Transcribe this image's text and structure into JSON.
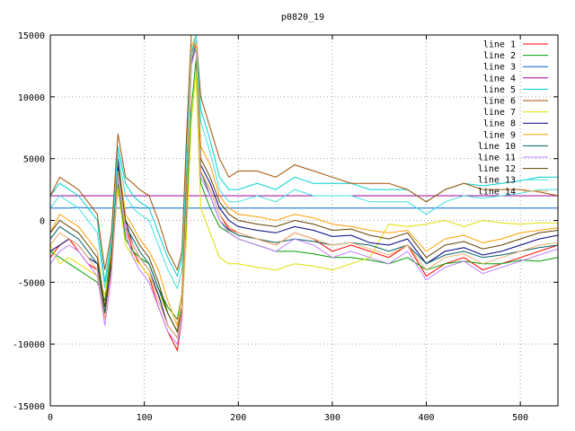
{
  "chart_data": {
    "type": "line",
    "title": "p0820_19",
    "xlabel": "",
    "ylabel": "",
    "xlim": [
      0,
      540
    ],
    "ylim": [
      -15000,
      15000
    ],
    "xticks": [
      0,
      100,
      200,
      300,
      400,
      500
    ],
    "yticks": [
      -15000,
      -10000,
      -5000,
      0,
      5000,
      10000,
      15000
    ],
    "grid": true,
    "legend_position": "top-right",
    "x": [
      0,
      10,
      20,
      30,
      40,
      50,
      58,
      65,
      72,
      80,
      88,
      95,
      105,
      115,
      125,
      135,
      140,
      145,
      150,
      155,
      160,
      170,
      180,
      190,
      200,
      220,
      240,
      260,
      280,
      300,
      320,
      340,
      360,
      380,
      400,
      420,
      440,
      460,
      480,
      500,
      520,
      540
    ],
    "series": [
      {
        "name": "line 1",
        "color": "#ff0000",
        "values": [
          -3000,
          -2000,
          -1500,
          -2500,
          -3500,
          -4000,
          -8000,
          -4000,
          4500,
          -500,
          -2500,
          -3500,
          -4500,
          -7000,
          -9000,
          -10500,
          -8000,
          2000,
          13000,
          14000,
          4000,
          2500,
          500,
          -700,
          -1000,
          -1500,
          -2000,
          -1000,
          -1500,
          -2500,
          -2000,
          -2500,
          -3000,
          -2000,
          -4500,
          -3500,
          -3000,
          -4000,
          -3500,
          -3000,
          -2500,
          -2000
        ]
      },
      {
        "name": "line 2",
        "color": "#00a000",
        "values": [
          -2500,
          -3000,
          -3500,
          -4000,
          -4500,
          -5000,
          -6500,
          -2000,
          3000,
          -1500,
          -2500,
          -3000,
          -3500,
          -5500,
          -7000,
          -8000,
          -6000,
          0,
          9000,
          13000,
          3000,
          1000,
          -500,
          -1000,
          -1500,
          -2000,
          -2500,
          -2500,
          -2700,
          -3000,
          -3000,
          -3200,
          -3500,
          -3000,
          -4000,
          -3500,
          -3300,
          -3500,
          -3500,
          -3200,
          -3300,
          -3000
        ]
      },
      {
        "name": "line 3",
        "color": "#0066cc",
        "values": [
          1000,
          1000,
          1000,
          1050,
          1000,
          1000,
          1000,
          1000,
          1000,
          1000,
          1050,
          1000,
          1000,
          1000,
          1000,
          1000,
          1000,
          1000,
          1000,
          1000,
          1000,
          1000,
          1000,
          1000,
          1000,
          1000,
          1000,
          1000,
          1000,
          1000,
          1000,
          1000,
          1000,
          1000,
          1000,
          1000,
          1000,
          1000,
          1000,
          1000,
          1000,
          1000
        ]
      },
      {
        "name": "line 4",
        "color": "#a000a0",
        "values": [
          2000,
          2000,
          2000,
          2000,
          2000,
          2000,
          2000,
          2000,
          2000,
          2000,
          2000,
          2000,
          2000,
          2000,
          2000,
          2000,
          2000,
          2000,
          2000,
          2000,
          2000,
          2000,
          2000,
          2000,
          2000,
          2000,
          2000,
          2000,
          2000,
          2000,
          2000,
          2000,
          2000,
          2000,
          2000,
          2000,
          2000,
          2000,
          2000,
          2000,
          2000,
          2000
        ]
      },
      {
        "name": "line 5",
        "color": "#00d0d0",
        "values": [
          2000,
          3000,
          2500,
          2000,
          1000,
          0,
          -5000,
          -1500,
          6000,
          3000,
          2000,
          1500,
          1000,
          -1000,
          -3000,
          -4500,
          -3000,
          6000,
          14000,
          15000,
          9000,
          6500,
          3500,
          2500,
          2500,
          3000,
          2500,
          3500,
          3000,
          3000,
          3000,
          2500,
          2500,
          2500,
          1500,
          2500,
          3000,
          2800,
          3000,
          3200,
          3500,
          3500
        ]
      },
      {
        "name": "line 6",
        "color": "#a05000",
        "values": [
          2000,
          3500,
          3000,
          2500,
          1500,
          500,
          -4000,
          -1000,
          7000,
          3500,
          3000,
          2500,
          2000,
          0,
          -2500,
          -4000,
          -2500,
          7000,
          15000,
          15000,
          10000,
          7500,
          5000,
          3500,
          4000,
          4000,
          3500,
          4500,
          4000,
          3500,
          3000,
          3000,
          3000,
          2500,
          1500,
          2500,
          3000,
          2500,
          2500,
          2500,
          2300,
          2000
        ]
      },
      {
        "name": "line 7",
        "color": "#e0e000",
        "values": [
          -2000,
          -3500,
          -3000,
          -3500,
          -4000,
          -4500,
          -6000,
          -3500,
          2500,
          -2000,
          -3000,
          -3500,
          -4500,
          -6000,
          -7500,
          -9000,
          -7500,
          -1000,
          8000,
          12000,
          1000,
          -1000,
          -3000,
          -3500,
          -3500,
          -3800,
          -4000,
          -3500,
          -3700,
          -4000,
          -3500,
          -3000,
          -300,
          -500,
          -300,
          0,
          -500,
          0,
          -200,
          -300,
          -200,
          -200
        ]
      },
      {
        "name": "line 8",
        "color": "#000080",
        "values": [
          -2500,
          -2000,
          -1500,
          -2000,
          -3000,
          -3500,
          -7500,
          -3500,
          4500,
          0,
          -2000,
          -3000,
          -4000,
          -6000,
          -8500,
          -9500,
          -7500,
          2500,
          13000,
          14500,
          4500,
          3000,
          1000,
          0,
          -500,
          -800,
          -1000,
          -500,
          -800,
          -1300,
          -1200,
          -1800,
          -2000,
          -1500,
          -3500,
          -2500,
          -2200,
          -2800,
          -2500,
          -2000,
          -1500,
          -1200
        ]
      },
      {
        "name": "line 9",
        "color": "#ffa000",
        "values": [
          -1000,
          500,
          0,
          -500,
          -1500,
          -2500,
          -7000,
          -2500,
          5000,
          500,
          -500,
          -1500,
          -2500,
          -4000,
          -6500,
          -8500,
          -6000,
          4500,
          14000,
          15000,
          6000,
          4500,
          2000,
          1000,
          500,
          300,
          0,
          500,
          200,
          -300,
          -500,
          -800,
          -1000,
          -800,
          -2500,
          -1500,
          -1200,
          -1800,
          -1500,
          -1000,
          -800,
          -600
        ]
      },
      {
        "name": "line 10",
        "color": "#006060",
        "values": [
          -1500,
          -500,
          -1000,
          -1500,
          -2500,
          -3500,
          -7500,
          -3000,
          5000,
          -500,
          -1500,
          -2500,
          -3500,
          -5500,
          -7500,
          -9000,
          -7000,
          1000,
          12500,
          14500,
          4000,
          2000,
          0,
          -800,
          -1200,
          -1500,
          -1800,
          -1500,
          -1700,
          -2000,
          -1800,
          -2000,
          -2500,
          -2000,
          -3500,
          -2800,
          -2500,
          -3000,
          -2800,
          -2500,
          -2200,
          -2000
        ]
      },
      {
        "name": "line 11",
        "color": "#c080ff",
        "values": [
          -3500,
          -2500,
          -2000,
          -2500,
          -3500,
          -4500,
          -8500,
          -4500,
          3500,
          -1000,
          -3000,
          -4000,
          -5000,
          -7000,
          -9000,
          -10000,
          -8000,
          1500,
          12500,
          14000,
          3500,
          2000,
          0,
          -1000,
          -1500,
          -2000,
          -2500,
          -1500,
          -2000,
          -3000,
          -2500,
          -3000,
          -3500,
          -2500,
          -4800,
          -3800,
          -3300,
          -4300,
          -3800,
          -3300,
          -2800,
          -2300
        ]
      },
      {
        "name": "line 12",
        "color": "#604000",
        "values": [
          -1000,
          0,
          -500,
          -1000,
          -2000,
          -3000,
          -7000,
          -3000,
          4000,
          0,
          -1000,
          -2000,
          -3000,
          -5000,
          -7500,
          -9000,
          -7000,
          3000,
          13500,
          14500,
          5000,
          3500,
          1500,
          500,
          0,
          -300,
          -500,
          0,
          -300,
          -800,
          -700,
          -1200,
          -1500,
          -1000,
          -3000,
          -2000,
          -1700,
          -2300,
          -2000,
          -1500,
          -1000,
          -800
        ]
      },
      {
        "name": "line 13",
        "color": "#40e0e0",
        "values": [
          1000,
          2000,
          1500,
          1000,
          0,
          -1000,
          -5500,
          -2000,
          5500,
          2000,
          1000,
          500,
          0,
          -2000,
          -4000,
          -5500,
          -4000,
          5000,
          13500,
          15000,
          8000,
          5500,
          2500,
          1500,
          1500,
          2000,
          1500,
          2500,
          2000,
          2000,
          2000,
          1500,
          1500,
          1500,
          500,
          1500,
          2000,
          1800,
          2000,
          2200,
          2500,
          2500
        ]
      },
      {
        "name": "line 14",
        "color": "#f0b070",
        "values": [
          -2000,
          -1000,
          -1500,
          -2000,
          -3000,
          -4000,
          -8000,
          -4000,
          4000,
          -500,
          -2000,
          -3000,
          -4000,
          -6500,
          -8500,
          -9500,
          -7500,
          2000,
          13000,
          14500,
          4000,
          2500,
          500,
          -500,
          -1000,
          -1500,
          -2000,
          -1000,
          -1500,
          -2000,
          -1800,
          -2300,
          -2800,
          -2000,
          -4000,
          -3000,
          -2700,
          -3500,
          -3000,
          -2500,
          -2000,
          -1800
        ]
      }
    ]
  }
}
